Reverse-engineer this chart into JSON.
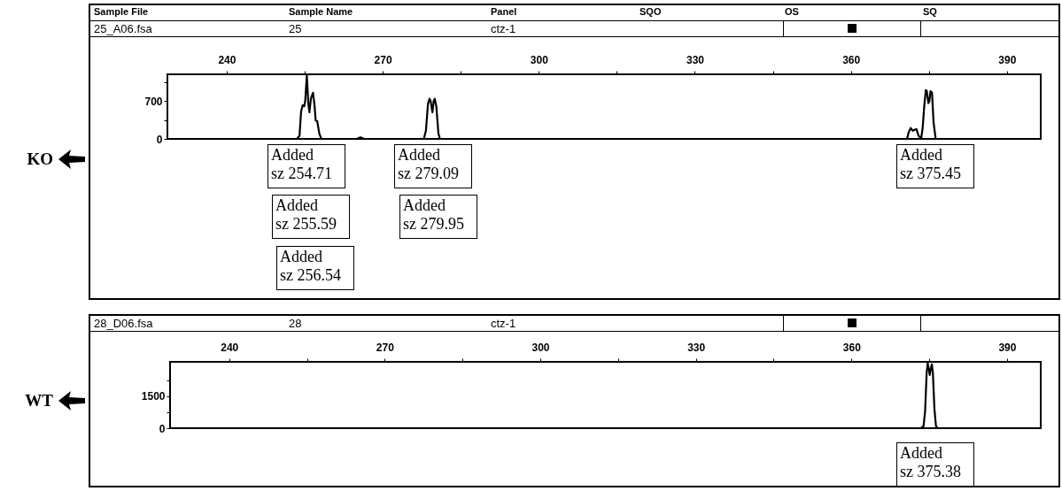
{
  "chart_data": [
    {
      "type": "line",
      "title": "KO",
      "xlim": [
        228.6,
        396.5
      ],
      "ylim": [
        0,
        1190
      ],
      "xticks": [
        240,
        {
          "value": 255,
          "label": null
        },
        270,
        {
          "value": 285,
          "label": null
        },
        300,
        {
          "value": 315,
          "label": null
        },
        330,
        {
          "value": 345,
          "label": null
        },
        360,
        {
          "value": 375,
          "label": null
        },
        390
      ],
      "yticks": [
        0,
        {
          "value": 350,
          "label": null
        },
        700,
        {
          "value": 1050,
          "label": null
        }
      ],
      "grid": false,
      "marker": "none",
      "line_style": "solid",
      "series": [
        {
          "color": "#000000",
          "x": [
            228.6,
            253.5,
            254.0,
            254.3,
            254.6,
            254.9,
            255.1,
            255.4,
            255.7,
            255.9,
            256.2,
            256.6,
            256.9,
            257.1,
            257.4,
            257.8,
            258.2,
            265.0,
            265.7,
            266.4,
            277.9,
            278.3,
            278.7,
            279.0,
            279.2,
            279.55,
            279.8,
            280.0,
            280.3,
            280.7,
            281.0,
            370.8,
            371.1,
            371.5,
            371.9,
            372.3,
            372.6,
            373.0,
            373.5,
            373.8,
            374.1,
            374.4,
            374.6,
            374.9,
            375.1,
            375.3,
            375.6,
            375.9,
            376.3,
            396.5
          ],
          "values": [
            0,
            0,
            60,
            500,
            620,
            600,
            700,
            1170,
            650,
            490,
            750,
            850,
            600,
            340,
            330,
            100,
            0,
            0,
            30,
            0,
            0,
            150,
            650,
            740,
            700,
            490,
            700,
            740,
            600,
            100,
            0,
            0,
            120,
            200,
            150,
            170,
            180,
            60,
            0,
            200,
            600,
            900,
            880,
            660,
            700,
            880,
            850,
            300,
            0,
            0
          ]
        }
      ],
      "annotations": [
        "Sample File",
        "Sample Name",
        "Panel",
        "SQO",
        "OS",
        "SQ",
        "25_A06.fsa",
        "25",
        "ctz-1",
        "Added\nsz 254.71",
        "Added\nsz 255.59",
        "Added\nsz 256.54",
        "Added\nsz 279.09",
        "Added\nsz 279.95",
        "Added\nsz 375.45"
      ]
    },
    {
      "type": "line",
      "title": "WT",
      "xlim": [
        228.6,
        396.5
      ],
      "ylim": [
        0,
        3120
      ],
      "xticks": [
        240,
        {
          "value": 255,
          "label": null
        },
        270,
        {
          "value": 285,
          "label": null
        },
        300,
        {
          "value": 315,
          "label": null
        },
        330,
        {
          "value": 345,
          "label": null
        },
        360,
        {
          "value": 375,
          "label": null
        },
        390
      ],
      "yticks": [
        0,
        {
          "value": 750,
          "label": null
        },
        1500,
        {
          "value": 2250,
          "label": null
        }
      ],
      "grid": false,
      "marker": "none",
      "line_style": "solid",
      "series": [
        {
          "color": "#000000",
          "x": [
            228.6,
            373.4,
            373.9,
            374.2,
            374.5,
            374.7,
            374.9,
            375.1,
            375.3,
            375.5,
            375.7,
            376.0,
            376.3,
            376.6,
            396.5
          ],
          "values": [
            0,
            0,
            100,
            800,
            2600,
            3050,
            2800,
            2500,
            2800,
            3000,
            2600,
            900,
            100,
            0,
            0
          ]
        }
      ],
      "annotations": [
        "28_D06.fsa",
        "28",
        "ctz-1",
        "Added\nsz 375.38"
      ]
    }
  ]
}
